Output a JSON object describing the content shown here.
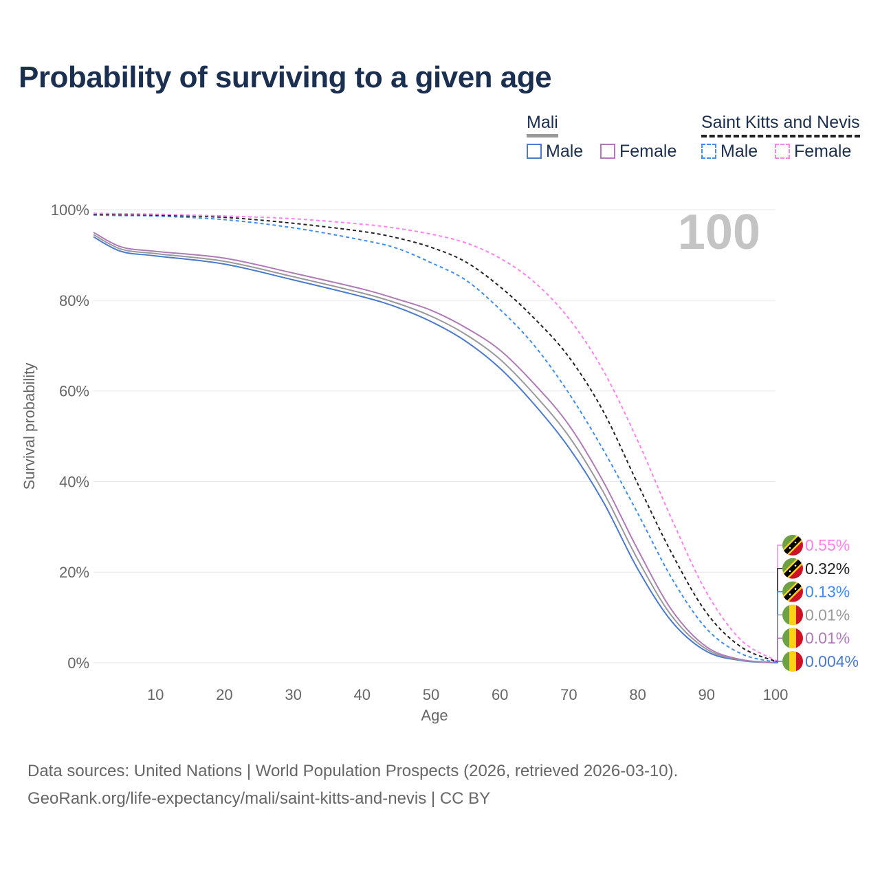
{
  "title": "Probability of surviving to a given age",
  "legend": {
    "groups": [
      {
        "name": "Mali",
        "items": [
          "Male",
          "Female"
        ]
      },
      {
        "name": "Saint Kitts and Nevis",
        "items": [
          "Male",
          "Female"
        ]
      }
    ]
  },
  "sources": {
    "line1": "Data sources: United Nations | World Population Prospects (2026, retrieved 2026-03-10).",
    "line2": "GeoRank.org/life-expectancy/mali/saint-kitts-and-nevis | CC BY"
  },
  "chart_data": {
    "type": "line",
    "title": "Probability of surviving to a given age",
    "xlabel": "Age",
    "ylabel": "Survival probability",
    "xlim": [
      1,
      100
    ],
    "ylim": [
      0,
      100
    ],
    "xticks": [
      "10",
      "20",
      "30",
      "40",
      "50",
      "60",
      "70",
      "80",
      "90",
      "100"
    ],
    "yticks": [
      "0%",
      "20%",
      "40%",
      "60%",
      "80%",
      "100%"
    ],
    "age_watermark": "100",
    "x": [
      1,
      5,
      10,
      20,
      30,
      40,
      45,
      50,
      55,
      60,
      65,
      70,
      75,
      80,
      85,
      90,
      95,
      100
    ],
    "series": [
      {
        "name": "Mali Male",
        "color": "#4a7acb",
        "dashed": false,
        "end_label": "0.004%",
        "flag": "mali",
        "values": [
          94,
          90.8,
          89.8,
          88,
          84.5,
          80.8,
          78.5,
          75.3,
          71,
          65,
          57,
          47.5,
          35.5,
          20.7,
          9,
          2.5,
          0.5,
          0.004
        ]
      },
      {
        "name": "Mali Total",
        "color": "#999999",
        "dashed": false,
        "end_label": "0.01%",
        "flag": "mali",
        "values": [
          94.5,
          91.3,
          90.3,
          88.6,
          85.2,
          81.6,
          79.4,
          76.5,
          72.5,
          67,
          59.2,
          50,
          37.7,
          22.8,
          10.2,
          3,
          0.6,
          0.01
        ]
      },
      {
        "name": "Mali Female",
        "color": "#b07ab8",
        "dashed": false,
        "end_label": "0.01%",
        "flag": "mali",
        "values": [
          95,
          91.8,
          90.8,
          89.3,
          86,
          82.5,
          80.3,
          77.8,
          74,
          69,
          61.5,
          52.5,
          40,
          25,
          11.5,
          3.5,
          0.7,
          0.01
        ]
      },
      {
        "name": "Saint Kitts and Nevis Male",
        "color": "#3d8ef0",
        "dashed": true,
        "end_label": "0.13%",
        "flag": "skn",
        "values": [
          98.8,
          98.7,
          98.6,
          97.8,
          96,
          93.3,
          91.5,
          88.3,
          84.5,
          78,
          70,
          59.5,
          47,
          33,
          18.5,
          7.5,
          2,
          0.13
        ]
      },
      {
        "name": "Saint Kitts and Nevis Total",
        "color": "#222222",
        "dashed": true,
        "end_label": "0.32%",
        "flag": "skn",
        "values": [
          99,
          98.9,
          98.8,
          98.3,
          97,
          95.2,
          93.8,
          91.7,
          88.5,
          83,
          76,
          67.5,
          55.5,
          39.5,
          24,
          11,
          3.5,
          0.32
        ]
      },
      {
        "name": "Saint Kitts and Nevis Female",
        "color": "#ff80f0",
        "dashed": true,
        "end_label": "0.55%",
        "flag": "skn",
        "values": [
          99.2,
          99.1,
          99,
          98.6,
          98,
          96.8,
          95.9,
          94.6,
          92.7,
          89.3,
          84,
          76,
          64.5,
          49,
          31.5,
          15.5,
          5,
          0.55
        ]
      }
    ]
  }
}
